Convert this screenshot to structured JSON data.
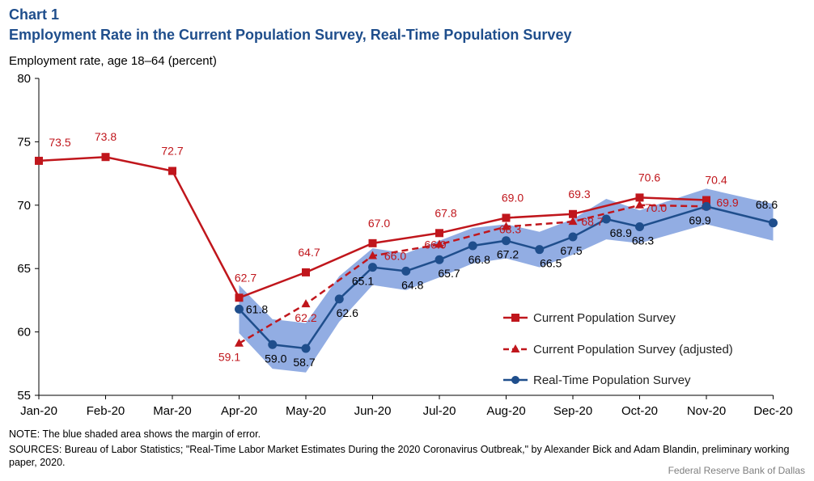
{
  "header": {
    "chart_label": "Chart 1",
    "title": "Employment Rate in the Current Population Survey, Real-Time Population Survey"
  },
  "footer": {
    "note": "NOTE: The blue shaded area shows the margin of error.",
    "sources": "SOURCES: Bureau of Labor Statistics; \"Real-Time Labor Market Estimates During the 2020 Coronavirus Outbreak,\" by Alexander Bick and Adam Blandin, preliminary working paper, 2020.",
    "credit": "Federal Reserve Bank of Dallas"
  },
  "colors": {
    "cps": "#c0161c",
    "rps": "#1f4e8c",
    "band": "#7f9fde"
  },
  "chart_data": {
    "type": "line",
    "ylabel": "Employment rate, age 18–64 (percent)",
    "xlabel": "",
    "ylim": [
      55,
      80
    ],
    "yticks": [
      55,
      60,
      65,
      70,
      75,
      80
    ],
    "x_positions": [
      0,
      1,
      2,
      3,
      3.5,
      4,
      4.5,
      5,
      5.5,
      6,
      6.5,
      7,
      7.5,
      8,
      8.5,
      9,
      9.5,
      10,
      10.5,
      11
    ],
    "x_ticks": [
      {
        "x": 0,
        "label": "Jan-20"
      },
      {
        "x": 1,
        "label": "Feb-20"
      },
      {
        "x": 2,
        "label": "Mar-20"
      },
      {
        "x": 3,
        "label": "Apr-20"
      },
      {
        "x": 4,
        "label": "May-20"
      },
      {
        "x": 5,
        "label": "Jun-20"
      },
      {
        "x": 6,
        "label": "Jul-20"
      },
      {
        "x": 7,
        "label": "Aug-20"
      },
      {
        "x": 8,
        "label": "Sep-20"
      },
      {
        "x": 9,
        "label": "Oct-20"
      },
      {
        "x": 10,
        "label": "Nov-20"
      },
      {
        "x": 11,
        "label": "Dec-20"
      }
    ],
    "legend_position": "bottom-right",
    "series": [
      {
        "name": "Current Population Survey",
        "style": "solid-square",
        "x": [
          0,
          1,
          2,
          3,
          4,
          5,
          6,
          7,
          8,
          9,
          10
        ],
        "y": [
          73.5,
          73.8,
          72.7,
          62.7,
          64.7,
          67.0,
          67.8,
          69.0,
          69.3,
          70.6,
          70.4
        ],
        "labels": [
          "73.5",
          "73.8",
          "72.7",
          "62.7",
          "64.7",
          "67.0",
          "67.8",
          "69.0",
          "69.3",
          "70.6",
          "70.4"
        ]
      },
      {
        "name": "Current Population Survey (adjusted)",
        "style": "dashed-triangle",
        "x": [
          3,
          4,
          5,
          6,
          7,
          8,
          9,
          10
        ],
        "y": [
          59.1,
          62.2,
          66.0,
          66.9,
          68.3,
          68.7,
          70.0,
          69.9
        ],
        "labels": [
          "59.1",
          "62.2",
          "66.0",
          "66.9",
          "68.3",
          "68.7",
          "70.0",
          "69.9"
        ]
      },
      {
        "name": "Real-Time Population Survey",
        "style": "solid-circle",
        "x": [
          3,
          3.5,
          4,
          4.5,
          5,
          5.5,
          6,
          6.5,
          7,
          7.5,
          8,
          8.5,
          9,
          10,
          11
        ],
        "y": [
          61.8,
          59.0,
          58.7,
          62.6,
          65.1,
          64.8,
          65.7,
          66.8,
          67.2,
          66.5,
          67.5,
          68.9,
          68.3,
          69.9,
          68.6
        ],
        "labels": [
          "61.8",
          "59.0",
          "58.7",
          "62.6",
          "65.1",
          "64.8",
          "65.7",
          "66.8",
          "67.2",
          "66.5",
          "67.5",
          "68.9",
          "68.3",
          "69.9",
          "68.6"
        ],
        "margin_of_error": {
          "upper": [
            63.7,
            61.0,
            60.7,
            64.4,
            66.6,
            66.2,
            67.2,
            68.2,
            68.5,
            67.9,
            68.9,
            70.5,
            69.6,
            71.3,
            70.1
          ],
          "lower": [
            59.9,
            57.1,
            56.8,
            60.8,
            63.7,
            63.3,
            64.3,
            65.4,
            65.8,
            65.1,
            66.1,
            67.3,
            67.0,
            68.5,
            67.2
          ]
        }
      }
    ]
  }
}
